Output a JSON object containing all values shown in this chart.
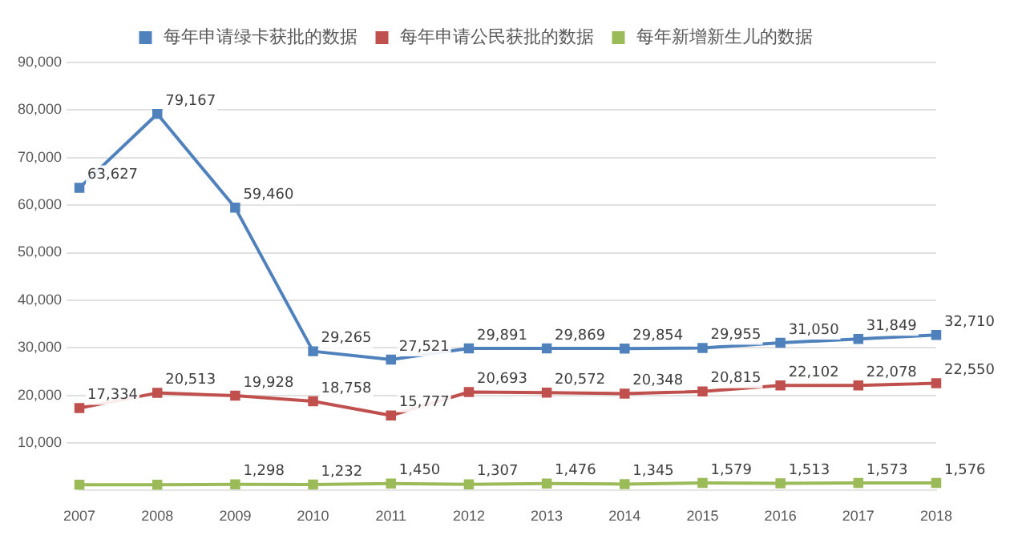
{
  "chart_data": {
    "type": "line",
    "categories": [
      "2007",
      "2008",
      "2009",
      "2010",
      "2011",
      "2012",
      "2013",
      "2014",
      "2015",
      "2016",
      "2017",
      "2018"
    ],
    "series": [
      {
        "name": "每年申请绿卡获批的数据",
        "color": "#4f81bd",
        "values": [
          63627,
          79167,
          59460,
          29265,
          27521,
          29891,
          29869,
          29854,
          29955,
          31050,
          31849,
          32710
        ],
        "value_labels": [
          "63,627",
          "79,167",
          "59,460",
          "29,265",
          "27,521",
          "29,891",
          "29,869",
          "29,854",
          "29,955",
          "31,050",
          "31,849",
          "32,710"
        ]
      },
      {
        "name": "每年申请公民获批的数据",
        "color": "#c0504d",
        "values": [
          17334,
          20513,
          19928,
          18758,
          15777,
          20693,
          20572,
          20348,
          20815,
          22102,
          22078,
          22550
        ],
        "value_labels": [
          "17,334",
          "20,513",
          "19,928",
          "18,758",
          "15,777",
          "20,693",
          "20,572",
          "20,348",
          "20,815",
          "22,102",
          "22,078",
          "22,550"
        ]
      },
      {
        "name": "每年新增新生儿的数据",
        "color": "#9bbb59",
        "values": [
          1200,
          1200,
          1298,
          1232,
          1450,
          1307,
          1476,
          1345,
          1579,
          1513,
          1573,
          1576
        ],
        "value_labels": [
          null,
          null,
          "1,298",
          "1,232",
          "1,450",
          "1,307",
          "1,476",
          "1,345",
          "1,579",
          "1,513",
          "1,573",
          "1,576"
        ]
      }
    ],
    "ylim": [
      0,
      90000
    ],
    "yticks": [
      {
        "value": 10000,
        "label": "10,000"
      },
      {
        "value": 20000,
        "label": "20,000"
      },
      {
        "value": 30000,
        "label": "30,000"
      },
      {
        "value": 40000,
        "label": "40,000"
      },
      {
        "value": 50000,
        "label": "50,000"
      },
      {
        "value": 60000,
        "label": "60,000"
      },
      {
        "value": 70000,
        "label": "70,000"
      },
      {
        "value": 80000,
        "label": "80,000"
      },
      {
        "value": 90000,
        "label": "90,000"
      }
    ],
    "grid": "y",
    "legend": "top",
    "marker": "square",
    "line_style": "solid"
  }
}
